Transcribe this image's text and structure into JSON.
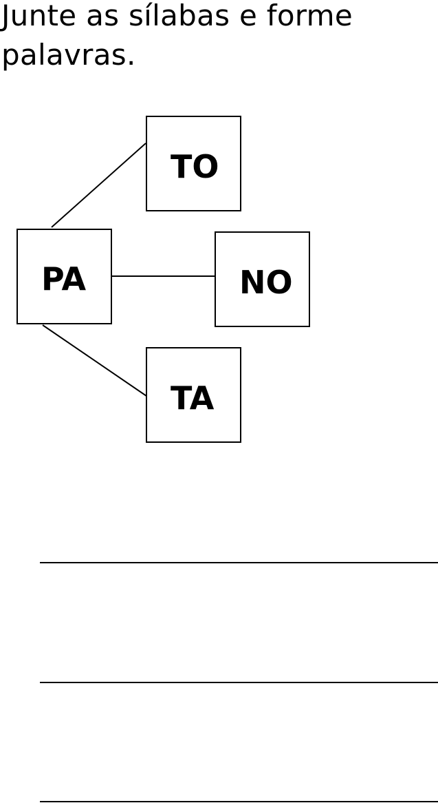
{
  "instruction": "Junte as sílabas e forme palavras.",
  "syllables": {
    "center": "PA",
    "options": [
      "TO",
      "NO",
      "TA"
    ]
  },
  "answer_lines": 3
}
